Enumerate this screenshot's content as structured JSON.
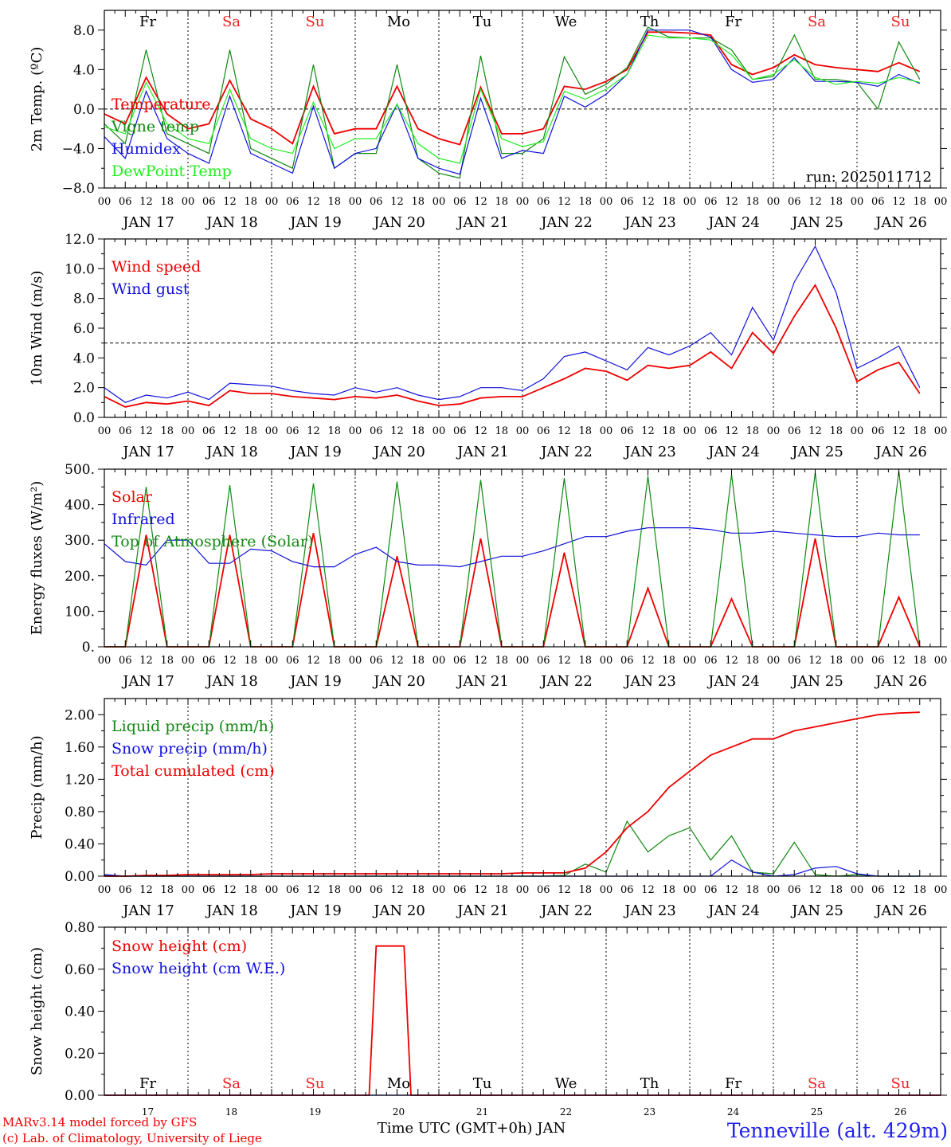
{
  "colors": {
    "red": "#ee0000",
    "green": "#118811",
    "blue": "#1111dd",
    "lightgreen": "#22ee22",
    "weekend": "#ee2222",
    "footer_blue": "#2222ee",
    "text": "#000000"
  },
  "days": {
    "labels": [
      "Fr",
      "Sa",
      "Su",
      "Mo",
      "Tu",
      "We",
      "Th",
      "Fr",
      "Sa",
      "Su"
    ],
    "weekend": [
      false,
      true,
      true,
      false,
      false,
      false,
      false,
      false,
      true,
      true
    ],
    "dates": [
      "JAN 17",
      "JAN 18",
      "JAN 19",
      "JAN 20",
      "JAN 21",
      "JAN 22",
      "JAN 23",
      "JAN 24",
      "JAN 25",
      "JAN 26"
    ],
    "day_numbers": [
      "17",
      "18",
      "19",
      "20",
      "21",
      "22",
      "23",
      "24",
      "25",
      "26"
    ]
  },
  "hour_ticks": [
    "00",
    "06",
    "12",
    "18"
  ],
  "hour_end_label": "00",
  "footer": {
    "model": "MARv3.14 model forced by GFS",
    "lab": "(c) Lab. of Climatology, University of Liege",
    "time_axis": "Time UTC (GMT+0h) JAN",
    "station": "Tenneville (alt. 429m)"
  },
  "chart_data": [
    {
      "type": "line",
      "ylabel": "2m Temp. (ºC)",
      "ylim": [
        -8,
        10
      ],
      "ytick_labels": [
        "−8.0",
        "−4.0",
        "0.0",
        "4.0",
        "8.0"
      ],
      "ytick_values": [
        -8,
        -4,
        0,
        4,
        8
      ],
      "reference_line": 0,
      "run_label": "run: 2025011712",
      "x_hours": [
        0,
        6,
        12,
        18,
        24,
        30,
        36,
        42,
        48,
        54,
        60,
        66,
        72,
        78,
        84,
        90,
        96,
        102,
        108,
        114,
        120,
        126,
        132,
        138,
        144,
        150,
        156,
        162,
        168,
        174,
        180,
        186,
        192,
        198,
        204,
        210,
        216,
        222,
        228,
        234
      ],
      "series": [
        {
          "name": "Temperature",
          "color": "red",
          "values": [
            -0.5,
            -1.5,
            3.2,
            -0.5,
            -2.0,
            -1.5,
            2.9,
            -1.0,
            -2.0,
            -3.5,
            2.3,
            -2.5,
            -2.0,
            -2.0,
            2.3,
            -2.0,
            -3.0,
            -3.6,
            2.2,
            -2.5,
            -2.5,
            -2.0,
            2.3,
            2.0,
            2.8,
            4.0,
            7.8,
            7.8,
            7.7,
            7.5,
            4.5,
            3.5,
            4.2,
            5.5,
            4.5,
            4.2,
            4.0,
            3.8,
            4.7,
            3.8
          ]
        },
        {
          "name": "Vigne temp",
          "color": "green",
          "values": [
            -1.5,
            -3.5,
            6.0,
            -2.5,
            -3.5,
            -4.5,
            6.0,
            -4.0,
            -5.0,
            -6.0,
            4.5,
            -6.0,
            -4.5,
            -4.5,
            4.5,
            -5.0,
            -6.5,
            -7.0,
            5.4,
            -4.5,
            -4.5,
            -3.0,
            5.3,
            1.5,
            2.5,
            4.2,
            8.3,
            7.3,
            7.2,
            7.2,
            6.0,
            3.0,
            3.3,
            7.5,
            3.0,
            3.0,
            2.7,
            0.0,
            6.8,
            3.0
          ]
        },
        {
          "name": "Humidex",
          "color": "blue",
          "values": [
            -2.8,
            -5.0,
            1.8,
            -3.0,
            -4.5,
            -5.5,
            1.3,
            -4.5,
            -5.5,
            -6.5,
            0.3,
            -6.0,
            -4.5,
            -4.0,
            0.5,
            -5.0,
            -6.0,
            -6.6,
            1.1,
            -5.0,
            -4.2,
            -4.5,
            1.3,
            0.2,
            1.5,
            3.5,
            8.0,
            8.0,
            8.0,
            7.3,
            4.0,
            2.7,
            3.0,
            5.2,
            2.8,
            2.8,
            2.7,
            2.3,
            3.5,
            2.6
          ]
        },
        {
          "name": "DewPoint Temp",
          "color": "lightgreen",
          "values": [
            -1.8,
            -2.5,
            2.7,
            -1.5,
            -3.0,
            -3.5,
            2.0,
            -3.0,
            -4.0,
            -4.5,
            0.7,
            -4.0,
            -3.0,
            -3.0,
            0.5,
            -3.5,
            -5.0,
            -5.5,
            2.0,
            -3.0,
            -3.8,
            -3.3,
            1.8,
            1.0,
            2.0,
            3.5,
            7.5,
            7.2,
            7.2,
            7.0,
            5.5,
            3.0,
            3.5,
            5.0,
            3.2,
            2.5,
            2.8,
            2.6,
            3.2,
            2.7
          ]
        }
      ]
    },
    {
      "type": "line",
      "ylabel": "10m Wind (m/s)",
      "ylim": [
        0,
        12
      ],
      "ytick_labels": [
        "0.0",
        "2.0",
        "4.0",
        "6.0",
        "8.0",
        "10.0",
        "12.0"
      ],
      "ytick_values": [
        0,
        2,
        4,
        6,
        8,
        10,
        12
      ],
      "reference_line": 5,
      "x_hours": [
        0,
        6,
        12,
        18,
        24,
        30,
        36,
        42,
        48,
        54,
        60,
        66,
        72,
        78,
        84,
        90,
        96,
        102,
        108,
        114,
        120,
        126,
        132,
        138,
        144,
        150,
        156,
        162,
        168,
        174,
        180,
        186,
        192,
        198,
        204,
        210,
        216,
        222,
        228,
        234
      ],
      "series": [
        {
          "name": "Wind speed",
          "color": "red",
          "values": [
            1.4,
            0.7,
            1.0,
            0.9,
            1.1,
            0.8,
            1.8,
            1.6,
            1.6,
            1.4,
            1.3,
            1.2,
            1.4,
            1.3,
            1.5,
            1.1,
            0.8,
            0.9,
            1.3,
            1.4,
            1.4,
            2.0,
            2.6,
            3.3,
            3.1,
            2.5,
            3.5,
            3.3,
            3.5,
            4.4,
            3.3,
            5.7,
            4.3,
            6.8,
            8.9,
            6.0,
            2.4,
            3.2,
            3.7,
            1.6
          ]
        },
        {
          "name": "Wind gust",
          "color": "blue",
          "values": [
            2.0,
            1.0,
            1.5,
            1.3,
            1.7,
            1.2,
            2.3,
            2.2,
            2.1,
            1.8,
            1.6,
            1.5,
            2.0,
            1.7,
            2.0,
            1.5,
            1.2,
            1.4,
            2.0,
            2.0,
            1.8,
            2.6,
            4.1,
            4.4,
            3.8,
            3.2,
            4.7,
            4.2,
            4.8,
            5.7,
            4.2,
            7.4,
            5.2,
            9.1,
            11.5,
            8.4,
            3.3,
            4.0,
            4.8,
            2.0
          ]
        }
      ]
    },
    {
      "type": "line",
      "ylabel": "Energy fluxes (W/m²)",
      "ylim": [
        0,
        500
      ],
      "ytick_labels": [
        "0.",
        "100.",
        "200.",
        "300.",
        "400.",
        "500."
      ],
      "ytick_values": [
        0,
        100,
        200,
        300,
        400,
        500
      ],
      "x_hours": [
        0,
        6,
        12,
        18,
        24,
        30,
        36,
        42,
        48,
        54,
        60,
        66,
        72,
        78,
        84,
        90,
        96,
        102,
        108,
        114,
        120,
        126,
        132,
        138,
        144,
        150,
        156,
        162,
        168,
        174,
        180,
        186,
        192,
        198,
        204,
        210,
        216,
        222,
        228,
        234
      ],
      "series": [
        {
          "name": "Solar",
          "color": "red",
          "values": [
            0,
            0,
            315,
            0,
            0,
            0,
            315,
            0,
            0,
            0,
            320,
            0,
            0,
            0,
            255,
            0,
            0,
            0,
            305,
            0,
            0,
            0,
            265,
            0,
            0,
            0,
            165,
            0,
            0,
            0,
            135,
            0,
            0,
            0,
            305,
            0,
            0,
            0,
            140,
            0
          ]
        },
        {
          "name": "Infrared",
          "color": "blue",
          "values": [
            290,
            240,
            230,
            300,
            300,
            235,
            235,
            275,
            270,
            240,
            225,
            225,
            260,
            280,
            240,
            230,
            230,
            225,
            240,
            255,
            255,
            270,
            290,
            310,
            310,
            325,
            335,
            335,
            335,
            330,
            320,
            320,
            325,
            320,
            315,
            310,
            310,
            320,
            315,
            315
          ]
        },
        {
          "name": "Top of Atmosphere (Solar)",
          "color": "green",
          "values": [
            0,
            0,
            450,
            0,
            0,
            0,
            455,
            0,
            0,
            0,
            460,
            0,
            0,
            0,
            465,
            0,
            0,
            0,
            470,
            0,
            0,
            0,
            475,
            0,
            0,
            0,
            480,
            0,
            0,
            0,
            485,
            0,
            0,
            0,
            490,
            0,
            0,
            0,
            495,
            0
          ]
        }
      ]
    },
    {
      "type": "line",
      "ylabel": "Precip (mm/h)",
      "ylim": [
        0,
        2.2
      ],
      "ytick_labels": [
        "0.00",
        "0.40",
        "0.80",
        "1.20",
        "1.60",
        "2.00"
      ],
      "ytick_values": [
        0,
        0.4,
        0.8,
        1.2,
        1.6,
        2.0
      ],
      "x_hours": [
        0,
        6,
        12,
        18,
        24,
        30,
        36,
        42,
        48,
        54,
        60,
        66,
        72,
        78,
        84,
        90,
        96,
        102,
        108,
        114,
        120,
        126,
        132,
        138,
        144,
        150,
        156,
        162,
        168,
        174,
        180,
        186,
        192,
        198,
        204,
        210,
        216,
        222,
        228,
        234
      ],
      "series": [
        {
          "name": "Liquid precip (mm/h)",
          "color": "green",
          "values": [
            0.01,
            0,
            0,
            0,
            0,
            0,
            0,
            0,
            0,
            0,
            0,
            0,
            0,
            0,
            0,
            0,
            0,
            0,
            0,
            0,
            0,
            0,
            0.01,
            0.15,
            0.05,
            0.68,
            0.3,
            0.5,
            0.6,
            0.2,
            0.5,
            0.05,
            0.03,
            0.42,
            0.02,
            0,
            0.02,
            0,
            0,
            0
          ]
        },
        {
          "name": "Snow precip (mm/h)",
          "color": "blue",
          "values": [
            0.02,
            0,
            0,
            0,
            0,
            0,
            0,
            0,
            0,
            0,
            0,
            0,
            0,
            0,
            0,
            0,
            0,
            0,
            0,
            0,
            0,
            0,
            0,
            0,
            0,
            0,
            0,
            0,
            0,
            0,
            0.2,
            0.05,
            0,
            0.02,
            0.1,
            0.12,
            0.03,
            0,
            0,
            0
          ]
        },
        {
          "name": "Total cumulated (cm)",
          "color": "red",
          "values": [
            0,
            0,
            0.01,
            0.01,
            0.02,
            0.02,
            0.02,
            0.02,
            0.03,
            0.03,
            0.03,
            0.03,
            0.03,
            0.03,
            0.03,
            0.03,
            0.03,
            0.03,
            0.03,
            0.03,
            0.04,
            0.04,
            0.04,
            0.1,
            0.3,
            0.6,
            0.8,
            1.1,
            1.3,
            1.5,
            1.6,
            1.7,
            1.7,
            1.8,
            1.85,
            1.9,
            1.95,
            2.0,
            2.02,
            2.03
          ]
        }
      ]
    },
    {
      "type": "line",
      "ylabel": "Snow height (cm)",
      "ylim": [
        0,
        0.8
      ],
      "ytick_labels": [
        "0.00",
        "0.20",
        "0.40",
        "0.60",
        "0.80"
      ],
      "ytick_values": [
        0,
        0.2,
        0.4,
        0.6,
        0.8
      ],
      "x_hours": [
        0,
        60,
        76,
        78,
        86,
        88,
        240
      ],
      "series": [
        {
          "name": "Snow height (cm)",
          "color": "red",
          "values": [
            0,
            0,
            0,
            0.71,
            0.71,
            0,
            0
          ]
        },
        {
          "name": "Snow height (cm W.E.)",
          "color": "blue",
          "values": [
            0,
            0,
            0,
            0,
            0,
            0,
            0
          ]
        }
      ]
    }
  ]
}
